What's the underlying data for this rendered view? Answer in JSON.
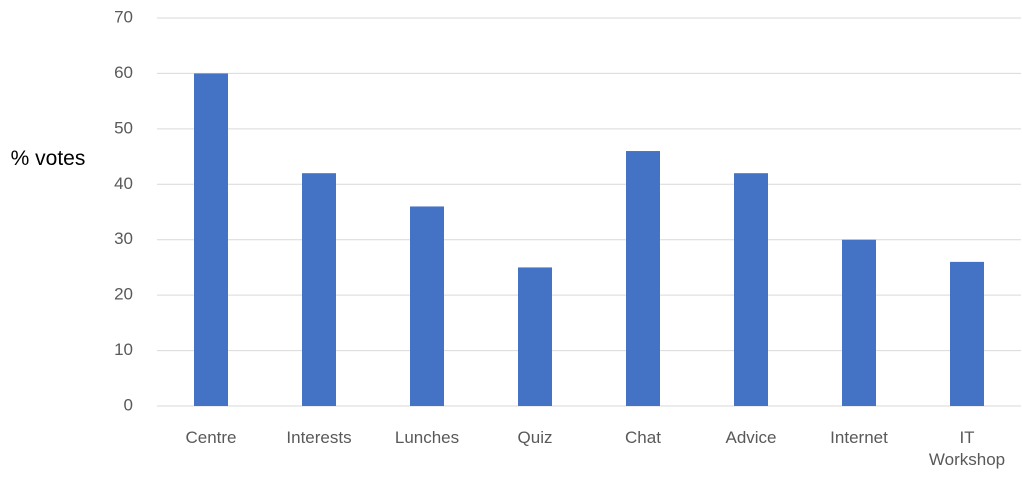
{
  "chart_data": {
    "type": "bar",
    "y_label": "% votes",
    "categories": [
      "Centre",
      "Interests",
      "Lunches",
      "Quiz",
      "Chat",
      "Advice",
      "Internet",
      "IT Workshop"
    ],
    "values": [
      60,
      42,
      36,
      25,
      46,
      42,
      30,
      26
    ],
    "color": "#4472c4",
    "ylim": [
      0,
      70
    ],
    "yticks": [
      0,
      10,
      20,
      30,
      40,
      50,
      60,
      70
    ],
    "grid": true
  }
}
